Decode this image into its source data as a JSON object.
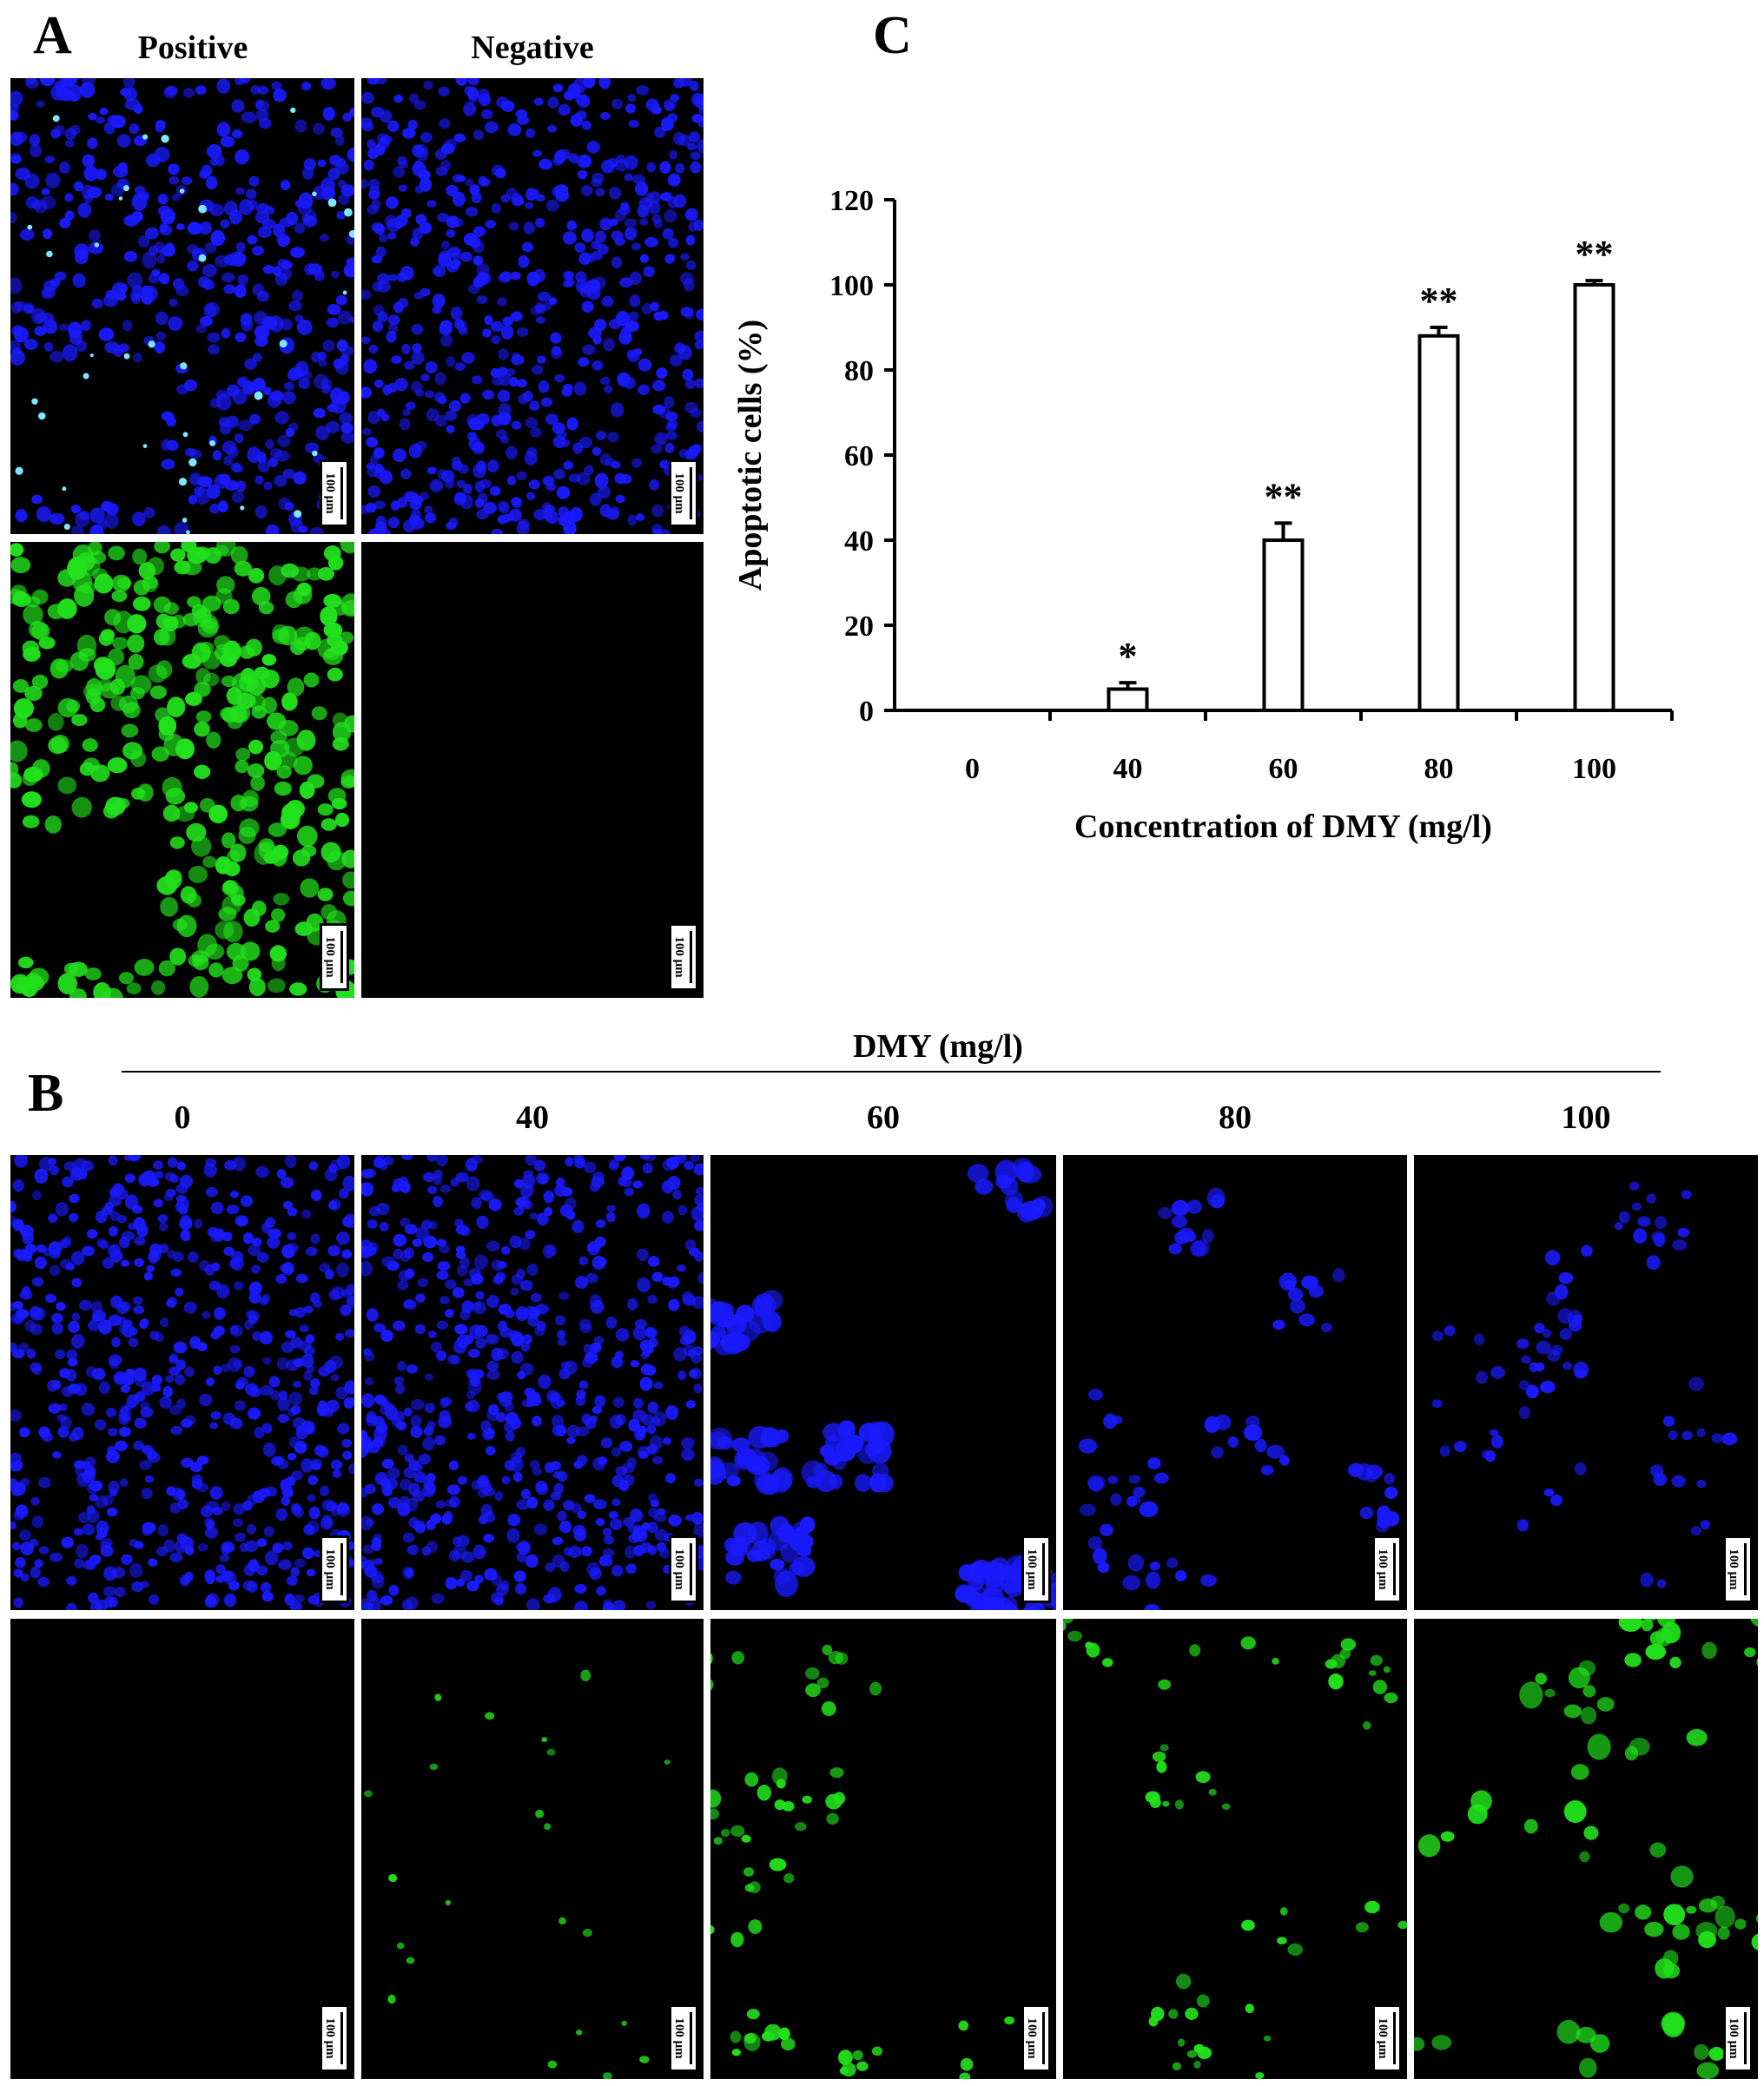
{
  "panel_labels": {
    "a": "A",
    "b": "B",
    "c": "C"
  },
  "panel_a": {
    "columns": [
      "Positive",
      "Negative"
    ],
    "scale_bar": "100 μm"
  },
  "panel_b": {
    "header": "DMY (mg/l)",
    "columns": [
      "0",
      "40",
      "60",
      "80",
      "100"
    ],
    "scale_bar": "100 μm"
  },
  "colors": {
    "dapi_blue": "#1a1aff",
    "tunel_green": "#22e01c",
    "background": "#000000"
  },
  "chart_data": {
    "type": "bar",
    "title": "",
    "xlabel": "Concentration of DMY (mg/l)",
    "ylabel": "Apoptotic cells (%)",
    "categories": [
      "0",
      "40",
      "60",
      "80",
      "100"
    ],
    "values": [
      0,
      5,
      40,
      88,
      100
    ],
    "errors": [
      0,
      1.5,
      4,
      2,
      1
    ],
    "significance": [
      "",
      "*",
      "**",
      "**",
      "**"
    ],
    "ylim": [
      0,
      120
    ],
    "yticks": [
      "0",
      "20",
      "40",
      "60",
      "80",
      "100",
      "120"
    ],
    "grid": false,
    "bar_color": "#ffffff"
  }
}
